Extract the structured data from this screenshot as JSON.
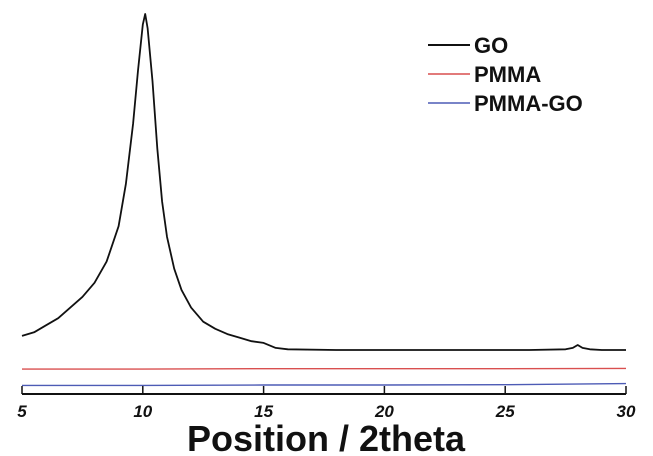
{
  "chart_data": {
    "type": "line",
    "title": "",
    "xlabel": "Position / 2theta",
    "ylabel": "",
    "xlim": [
      5,
      30
    ],
    "x_ticks": [
      5,
      10,
      15,
      20,
      25,
      30
    ],
    "x_tick_labels": [
      "5",
      "10",
      "15",
      "20",
      "25",
      "30"
    ],
    "grid": false,
    "legend_position": "top-right",
    "series": [
      {
        "name": "GO",
        "color": "#111111",
        "x": [
          5.0,
          5.5,
          6.0,
          6.5,
          7.0,
          7.5,
          8.0,
          8.5,
          9.0,
          9.3,
          9.6,
          9.8,
          10.0,
          10.1,
          10.2,
          10.4,
          10.6,
          10.8,
          11.0,
          11.3,
          11.6,
          12.0,
          12.5,
          13.0,
          13.5,
          14.0,
          14.5,
          15.0,
          15.5,
          16.0,
          18.0,
          20.0,
          22.0,
          24.0,
          26.0,
          27.5,
          27.8,
          28.0,
          28.2,
          28.5,
          29.0,
          30.0
        ],
        "y": [
          0.04,
          0.05,
          0.07,
          0.09,
          0.12,
          0.15,
          0.19,
          0.25,
          0.35,
          0.47,
          0.64,
          0.79,
          0.92,
          0.95,
          0.91,
          0.76,
          0.57,
          0.42,
          0.32,
          0.23,
          0.17,
          0.12,
          0.08,
          0.06,
          0.045,
          0.035,
          0.025,
          0.02,
          0.006,
          0.002,
          0.0,
          0.0,
          0.0,
          0.0,
          0.0,
          0.002,
          0.006,
          0.014,
          0.006,
          0.002,
          0.0,
          0.0
        ]
      },
      {
        "name": "PMMA",
        "color": "#d94f4f",
        "x": [
          5,
          10,
          15,
          20,
          25,
          30
        ],
        "y": [
          -0.054,
          -0.054,
          -0.053,
          -0.053,
          -0.053,
          -0.052
        ]
      },
      {
        "name": "PMMA-GO",
        "color": "#4d5bb5",
        "x": [
          5,
          10,
          15,
          20,
          25,
          30
        ],
        "y": [
          -0.1,
          -0.1,
          -0.099,
          -0.099,
          -0.098,
          -0.095
        ]
      }
    ]
  }
}
